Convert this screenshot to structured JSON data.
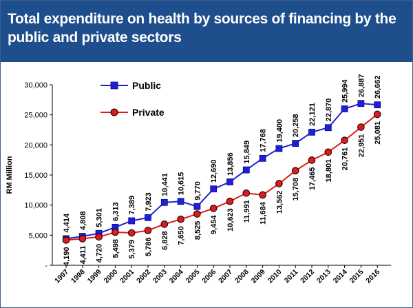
{
  "chart_data": {
    "type": "line",
    "title": "Total expenditure on health by sources of financing by the public and private sectors",
    "xlabel": "",
    "ylabel": "RM Million",
    "ylim": [
      0,
      30000
    ],
    "yticks": [
      0,
      5000,
      10000,
      15000,
      20000,
      25000,
      30000
    ],
    "ytick_labels": [
      "-",
      "5,000",
      "10,000",
      "15,000",
      "20,000",
      "25,000",
      "30,000"
    ],
    "grid": false,
    "legend_position": "top-left",
    "categories": [
      "1997",
      "1998",
      "1999",
      "2000",
      "2001",
      "2002",
      "2003",
      "2004",
      "2005",
      "2006",
      "2007",
      "2008",
      "2009",
      "2010",
      "2011",
      "2012",
      "2013",
      "2014",
      "2015",
      "2016"
    ],
    "series": [
      {
        "name": "Public",
        "color": "#1f1fd6",
        "marker": "square",
        "values": [
          4414,
          4808,
          5301,
          6313,
          7389,
          7923,
          10441,
          10615,
          9770,
          12690,
          13856,
          15849,
          17768,
          19400,
          20258,
          22121,
          22870,
          25994,
          26887,
          26662
        ],
        "labels": [
          "4,414",
          "4,808",
          "5,301",
          "6,313",
          "7,389",
          "7,923",
          "10,441",
          "10,615",
          "9,770",
          "12,690",
          "13,856",
          "15,849",
          "17,768",
          "19,400",
          "20,258",
          "22,121",
          "22,870",
          "25,994",
          "26,887",
          "26,662"
        ]
      },
      {
        "name": "Private",
        "color": "#e01a1a",
        "marker": "circle",
        "values": [
          4190,
          4411,
          4720,
          5498,
          5379,
          5786,
          6828,
          7650,
          8525,
          9454,
          10623,
          11991,
          11684,
          13562,
          15708,
          17465,
          18801,
          20761,
          22951,
          25081
        ],
        "labels": [
          "4,190",
          "4,411",
          "4,720",
          "5,498",
          "5,379",
          "5,786",
          "6,828",
          "7,650",
          "8,525",
          "9,454",
          "10,623",
          "11,991",
          "11,684",
          "13,562",
          "15,708",
          "17,465",
          "18,801",
          "20,761",
          "22,951",
          "25,081"
        ]
      }
    ]
  }
}
